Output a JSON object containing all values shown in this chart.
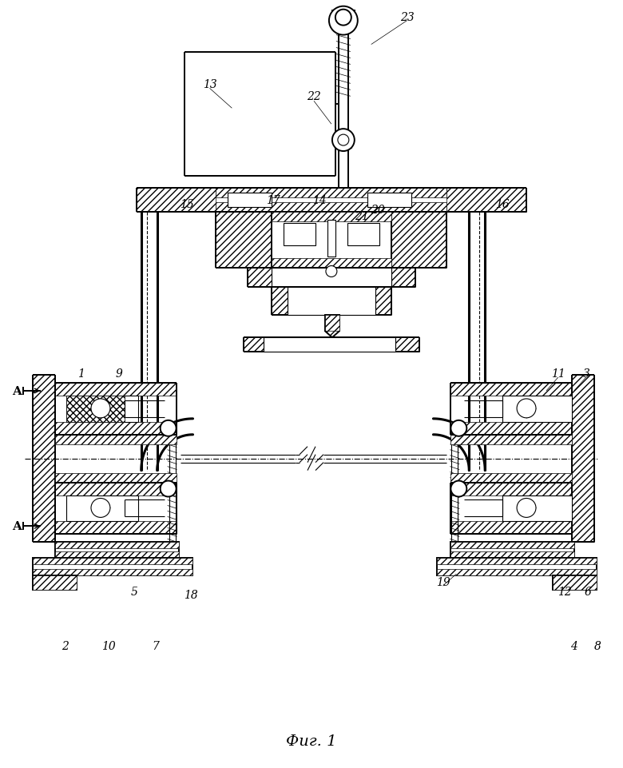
{
  "caption": "Фиг. 1",
  "bg_color": "#ffffff",
  "fig_width": 7.8,
  "fig_height": 9.62,
  "dpi": 100,
  "lw_thick": 2.2,
  "lw_med": 1.4,
  "lw_thin": 0.8,
  "lw_very_thin": 0.5,
  "hatch_density": "////",
  "cross_hatch": "xxxx",
  "label_fontsize": 10,
  "caption_fontsize": 13,
  "A_label_fontsize": 11
}
